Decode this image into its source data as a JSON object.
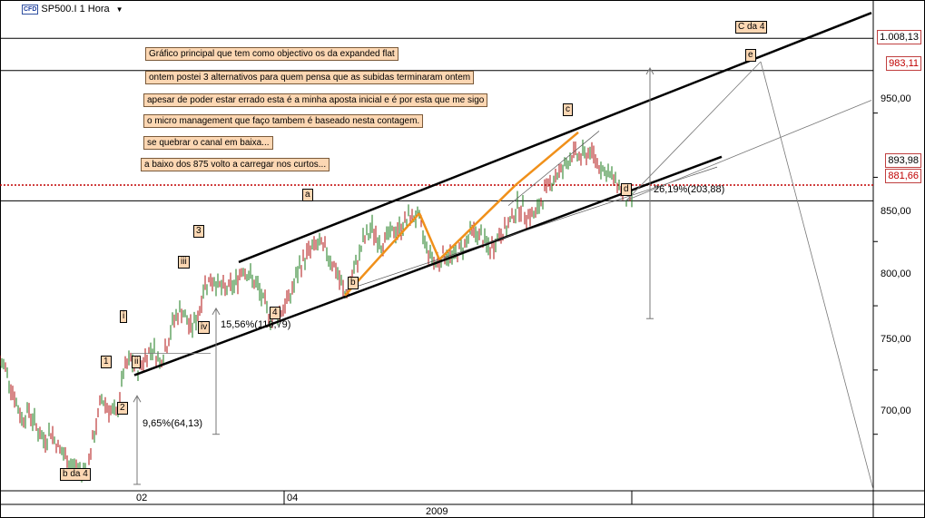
{
  "header": {
    "badge": "CFD",
    "symbol": "SP500.I 1 Hora",
    "menu_icon": "dropdown-triangle-icon"
  },
  "notes": [
    "Gráfico principal que tem como objectivo os da expanded flat",
    "ontem postei 3 alternativos para quem pensa que as subidas terminaram ontem",
    "apesar de poder estar errado esta é a minha aposta inicial e é por esta que me sigo",
    "o micro management que faço tambem é baseado nesta contagem.",
    "se quebrar o canal em baixa...",
    "a baixo dos 875 volto a carregar nos curtos..."
  ],
  "wave_labels": {
    "b_da_4": "b da 4",
    "w1": "1",
    "w2": "2",
    "w3": "3",
    "w4": "4",
    "wi": "i",
    "wii": "ii",
    "wiii": "iii",
    "wiv": "iv",
    "a": "a",
    "b": "b",
    "c": "c",
    "d": "d",
    "e": "e",
    "c_da_4": "C da 4"
  },
  "measurements": [
    "9,65%(64,13)",
    "15,56%(110,79)",
    "26,19%(203,88)"
  ],
  "price_boxes": [
    "1.008,13",
    "983,11",
    "893,98",
    "881,66"
  ],
  "chart_data": {
    "type": "line",
    "title": "SP500.I 1 Hora",
    "x_ticks": [
      "02",
      "04"
    ],
    "x_year": "2009",
    "y_ticks": [
      950,
      900,
      850,
      800,
      750,
      700
    ],
    "y_tick_labels": [
      "950,00",
      "900,00",
      "850,00",
      "800,00",
      "750,00",
      "700,00"
    ],
    "y_range": [
      656,
      1038
    ],
    "horizontal_lines": [
      {
        "value": 1008.13,
        "style": "solid",
        "color": "#000000"
      },
      {
        "value": 983.11,
        "style": "solid",
        "color": "#000000"
      },
      {
        "value": 893.98,
        "style": "dotted",
        "color": "#c00000"
      },
      {
        "value": 881.66,
        "style": "solid",
        "color": "#000000"
      }
    ],
    "series": [
      {
        "values_approx": [
          [
            0,
            756
          ],
          [
            6,
            752
          ],
          [
            12,
            738
          ],
          [
            18,
            724
          ],
          [
            24,
            712
          ],
          [
            32,
            718
          ],
          [
            40,
            706
          ],
          [
            48,
            695
          ],
          [
            56,
            702
          ],
          [
            64,
            690
          ],
          [
            72,
            682
          ],
          [
            80,
            676
          ],
          [
            88,
            670
          ],
          [
            96,
            674
          ],
          [
            104,
            700
          ],
          [
            112,
            728
          ],
          [
            120,
            720
          ],
          [
            128,
            714
          ],
          [
            136,
            748
          ],
          [
            144,
            758
          ],
          [
            152,
            750
          ],
          [
            160,
            760
          ],
          [
            168,
            768
          ],
          [
            176,
            756
          ],
          [
            184,
            770
          ],
          [
            192,
            790
          ],
          [
            200,
            797
          ],
          [
            210,
            782
          ],
          [
            218,
            792
          ],
          [
            226,
            818
          ],
          [
            236,
            820
          ],
          [
            246,
            812
          ],
          [
            258,
            816
          ],
          [
            268,
            830
          ],
          [
            276,
            822
          ],
          [
            284,
            814
          ],
          [
            292,
            800
          ],
          [
            300,
            789
          ],
          [
            310,
            796
          ],
          [
            320,
            808
          ],
          [
            330,
            830
          ],
          [
            340,
            842
          ],
          [
            350,
            848
          ],
          [
            360,
            842
          ],
          [
            370,
            828
          ],
          [
            380,
            808
          ],
          [
            390,
            826
          ],
          [
            400,
            850
          ],
          [
            410,
            860
          ],
          [
            420,
            848
          ],
          [
            430,
            856
          ],
          [
            440,
            860
          ],
          [
            450,
            868
          ],
          [
            460,
            870
          ],
          [
            470,
            845
          ],
          [
            480,
            833
          ],
          [
            490,
            840
          ],
          [
            500,
            838
          ],
          [
            510,
            846
          ],
          [
            520,
            858
          ],
          [
            530,
            854
          ],
          [
            540,
            843
          ],
          [
            550,
            855
          ],
          [
            560,
            862
          ],
          [
            570,
            878
          ],
          [
            580,
            872
          ],
          [
            590,
            870
          ],
          [
            600,
            888
          ],
          [
            610,
            900
          ],
          [
            620,
            906
          ],
          [
            630,
            918
          ],
          [
            640,
            916
          ],
          [
            650,
            920
          ],
          [
            660,
            910
          ],
          [
            670,
            902
          ],
          [
            680,
            896
          ],
          [
            690,
            882
          ],
          [
            697,
            885
          ]
        ]
      }
    ],
    "channel": {
      "upper": [
        [
          263,
          834
        ],
        [
          960,
          1028
        ]
      ],
      "lower": [
        [
          148,
          746
        ],
        [
          795,
          916
        ]
      ]
    },
    "orange_segments": [
      [
        [
          380,
          808
        ],
        [
          462,
          872
        ]
      ],
      [
        [
          462,
          872
        ],
        [
          484,
          836
        ]
      ],
      [
        [
          484,
          836
        ],
        [
          568,
          894
        ]
      ],
      [
        [
          568,
          894
        ],
        [
          637,
          935
        ]
      ]
    ],
    "projection_lines": [
      [
        [
          690,
          882
        ],
        [
          838,
          990
        ]
      ],
      [
        [
          838,
          990
        ],
        [
          962,
          657
        ]
      ],
      [
        [
          690,
          882
        ],
        [
          960,
          960
        ]
      ]
    ]
  }
}
